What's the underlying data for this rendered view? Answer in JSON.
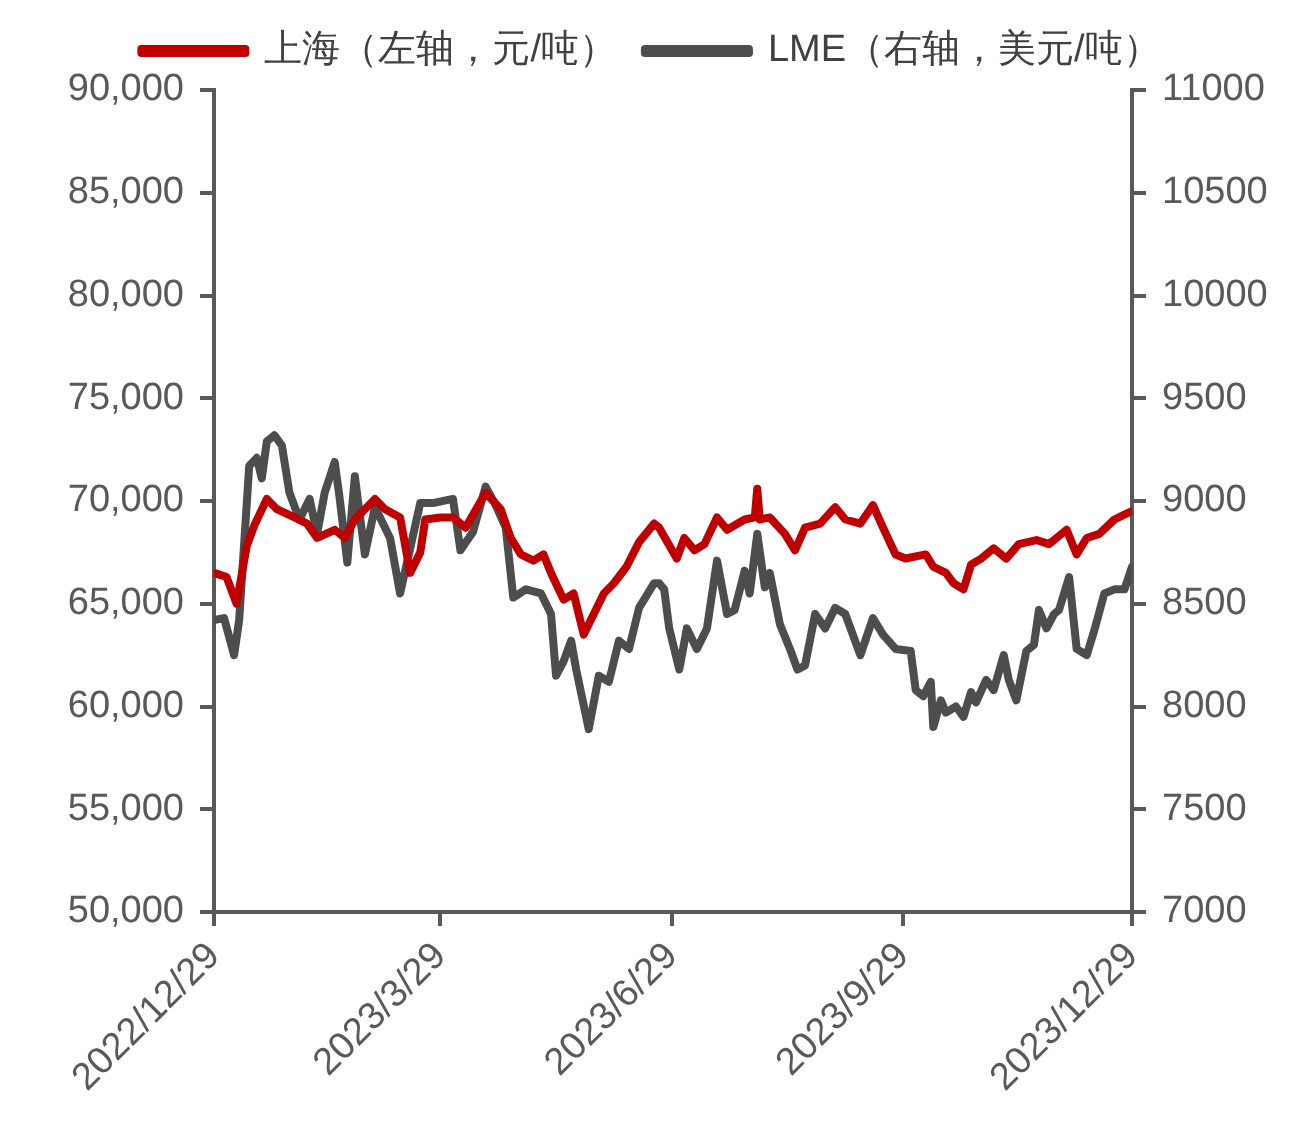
{
  "chart_data": {
    "type": "line",
    "xlim": [
      "2022-12-29",
      "2023-12-29"
    ],
    "xticks": [
      {
        "value": "2022-12-29",
        "label": "2022/12/29"
      },
      {
        "value": "2023-03-29",
        "label": "2023/3/29"
      },
      {
        "value": "2023-06-29",
        "label": "2023/6/29"
      },
      {
        "value": "2023-09-29",
        "label": "2023/9/29"
      },
      {
        "value": "2023-12-29",
        "label": "2023/12/29"
      }
    ],
    "ylim": [
      50000,
      90000
    ],
    "yticks": [
      {
        "value": 50000,
        "label": "50,000"
      },
      {
        "value": 55000,
        "label": "55,000"
      },
      {
        "value": 60000,
        "label": "60,000"
      },
      {
        "value": 65000,
        "label": "65,000"
      },
      {
        "value": 70000,
        "label": "70,000"
      },
      {
        "value": 75000,
        "label": "75,000"
      },
      {
        "value": 80000,
        "label": "80,000"
      },
      {
        "value": 85000,
        "label": "85,000"
      },
      {
        "value": 90000,
        "label": "90,000"
      }
    ],
    "y2lim": [
      7000,
      11000
    ],
    "y2ticks": [
      7000,
      7500,
      8000,
      8500,
      9000,
      9500,
      10000,
      10500,
      11000
    ],
    "grid": false,
    "legend": "top",
    "line_style": "solid",
    "series": [
      {
        "name": "上海（左轴，元/吨）",
        "color": "#c00000",
        "x": [
          "2022-12-29",
          "2023-01-03",
          "2023-01-07",
          "2023-01-11",
          "2023-01-14",
          "2023-01-19",
          "2023-01-23",
          "2023-01-30",
          "2023-02-04",
          "2023-02-08",
          "2023-02-15",
          "2023-02-19",
          "2023-02-23",
          "2023-03-03",
          "2023-03-07",
          "2023-03-13",
          "2023-03-17",
          "2023-03-21",
          "2023-03-23",
          "2023-03-29",
          "2023-04-03",
          "2023-04-08",
          "2023-04-16",
          "2023-04-22",
          "2023-04-26",
          "2023-04-30",
          "2023-05-05",
          "2023-05-09",
          "2023-05-12",
          "2023-05-17",
          "2023-05-21",
          "2023-05-25",
          "2023-05-29",
          "2023-06-02",
          "2023-06-06",
          "2023-06-11",
          "2023-06-16",
          "2023-06-22",
          "2023-06-24",
          "2023-07-01",
          "2023-07-04",
          "2023-07-08",
          "2023-07-12",
          "2023-07-17",
          "2023-07-21",
          "2023-07-28",
          "2023-08-01",
          "2023-08-02",
          "2023-08-03",
          "2023-08-07",
          "2023-08-13",
          "2023-08-17",
          "2023-08-21",
          "2023-08-27",
          "2023-09-02",
          "2023-09-06",
          "2023-09-12",
          "2023-09-17",
          "2023-09-21",
          "2023-09-26",
          "2023-09-30",
          "2023-10-08",
          "2023-10-11",
          "2023-10-16",
          "2023-10-19",
          "2023-10-23",
          "2023-10-26",
          "2023-10-30",
          "2023-11-04",
          "2023-11-09",
          "2023-11-14",
          "2023-11-21",
          "2023-11-26",
          "2023-12-03",
          "2023-12-07",
          "2023-12-11",
          "2023-12-16",
          "2023-12-22",
          "2023-12-27",
          "2023-12-29"
        ],
        "values": [
          66500,
          66300,
          65000,
          67800,
          68800,
          70100,
          69600,
          69200,
          68900,
          68200,
          68600,
          68200,
          69100,
          70100,
          69600,
          69200,
          66500,
          67500,
          69100,
          69200,
          69200,
          68700,
          70400,
          69600,
          68200,
          67400,
          67100,
          67400,
          66500,
          65200,
          65500,
          63500,
          64500,
          65500,
          66000,
          66800,
          68000,
          68900,
          68700,
          67200,
          68200,
          67600,
          67900,
          69200,
          68600,
          69100,
          69200,
          70600,
          69100,
          69200,
          68400,
          67600,
          68700,
          68900,
          69700,
          69100,
          68900,
          69800,
          68700,
          67400,
          67200,
          67400,
          66800,
          66500,
          66000,
          65700,
          66900,
          67200,
          67700,
          67200,
          67900,
          68100,
          67900,
          68600,
          67400,
          68200,
          68400,
          69100,
          69400,
          69500
        ]
      },
      {
        "name": "LME（右轴，美元/吨）",
        "color": "#4d4d4d",
        "axis": "y2",
        "x": [
          "2022-12-29",
          "2023-01-02",
          "2023-01-06",
          "2023-01-08",
          "2023-01-12",
          "2023-01-15",
          "2023-01-17",
          "2023-01-19",
          "2023-01-22",
          "2023-01-25",
          "2023-01-28",
          "2023-02-01",
          "2023-02-05",
          "2023-02-08",
          "2023-02-11",
          "2023-02-15",
          "2023-02-17",
          "2023-02-20",
          "2023-02-23",
          "2023-02-27",
          "2023-03-03",
          "2023-03-09",
          "2023-03-13",
          "2023-03-17",
          "2023-03-21",
          "2023-03-26",
          "2023-04-03",
          "2023-04-06",
          "2023-04-11",
          "2023-04-16",
          "2023-04-20",
          "2023-04-24",
          "2023-04-27",
          "2023-05-02",
          "2023-05-08",
          "2023-05-12",
          "2023-05-14",
          "2023-05-17",
          "2023-05-20",
          "2023-05-22",
          "2023-05-27",
          "2023-05-31",
          "2023-06-04",
          "2023-06-08",
          "2023-06-12",
          "2023-06-16",
          "2023-06-22",
          "2023-06-24",
          "2023-06-26",
          "2023-06-28",
          "2023-07-02",
          "2023-07-05",
          "2023-07-09",
          "2023-07-13",
          "2023-07-17",
          "2023-07-21",
          "2023-07-24",
          "2023-07-28",
          "2023-07-30",
          "2023-08-02",
          "2023-08-05",
          "2023-08-07",
          "2023-08-11",
          "2023-08-15",
          "2023-08-18",
          "2023-08-21",
          "2023-08-25",
          "2023-08-29",
          "2023-09-02",
          "2023-09-06",
          "2023-09-12",
          "2023-09-17",
          "2023-09-21",
          "2023-09-26",
          "2023-10-02",
          "2023-10-04",
          "2023-10-07",
          "2023-10-10",
          "2023-10-11",
          "2023-10-14",
          "2023-10-16",
          "2023-10-20",
          "2023-10-23",
          "2023-10-26",
          "2023-10-28",
          "2023-11-01",
          "2023-11-04",
          "2023-11-08",
          "2023-11-10",
          "2023-11-13",
          "2023-11-17",
          "2023-11-20",
          "2023-11-22",
          "2023-11-25",
          "2023-11-28",
          "2023-11-30",
          "2023-12-04",
          "2023-12-07",
          "2023-12-11",
          "2023-12-14",
          "2023-12-18",
          "2023-12-22",
          "2023-12-26",
          "2023-12-29"
        ],
        "values": [
          8420,
          8430,
          8250,
          8420,
          9170,
          9210,
          9110,
          9290,
          9320,
          9270,
          9040,
          8910,
          9010,
          8840,
          9040,
          9190,
          9010,
          8700,
          9120,
          8740,
          8970,
          8820,
          8550,
          8770,
          8990,
          8990,
          9010,
          8760,
          8850,
          9070,
          8980,
          8870,
          8530,
          8570,
          8550,
          8450,
          8150,
          8220,
          8320,
          8180,
          7890,
          8150,
          8120,
          8320,
          8280,
          8480,
          8600,
          8600,
          8570,
          8380,
          8180,
          8380,
          8280,
          8380,
          8710,
          8450,
          8470,
          8660,
          8550,
          8840,
          8580,
          8650,
          8400,
          8280,
          8180,
          8200,
          8450,
          8380,
          8480,
          8450,
          8250,
          8430,
          8350,
          8280,
          8270,
          8080,
          8050,
          8120,
          7900,
          8030,
          7970,
          8000,
          7950,
          8070,
          8020,
          8130,
          8080,
          8250,
          8130,
          8030,
          8270,
          8300,
          8470,
          8380,
          8450,
          8470,
          8630,
          8280,
          8250,
          8370,
          8550,
          8570,
          8570,
          8680
        ]
      }
    ]
  }
}
